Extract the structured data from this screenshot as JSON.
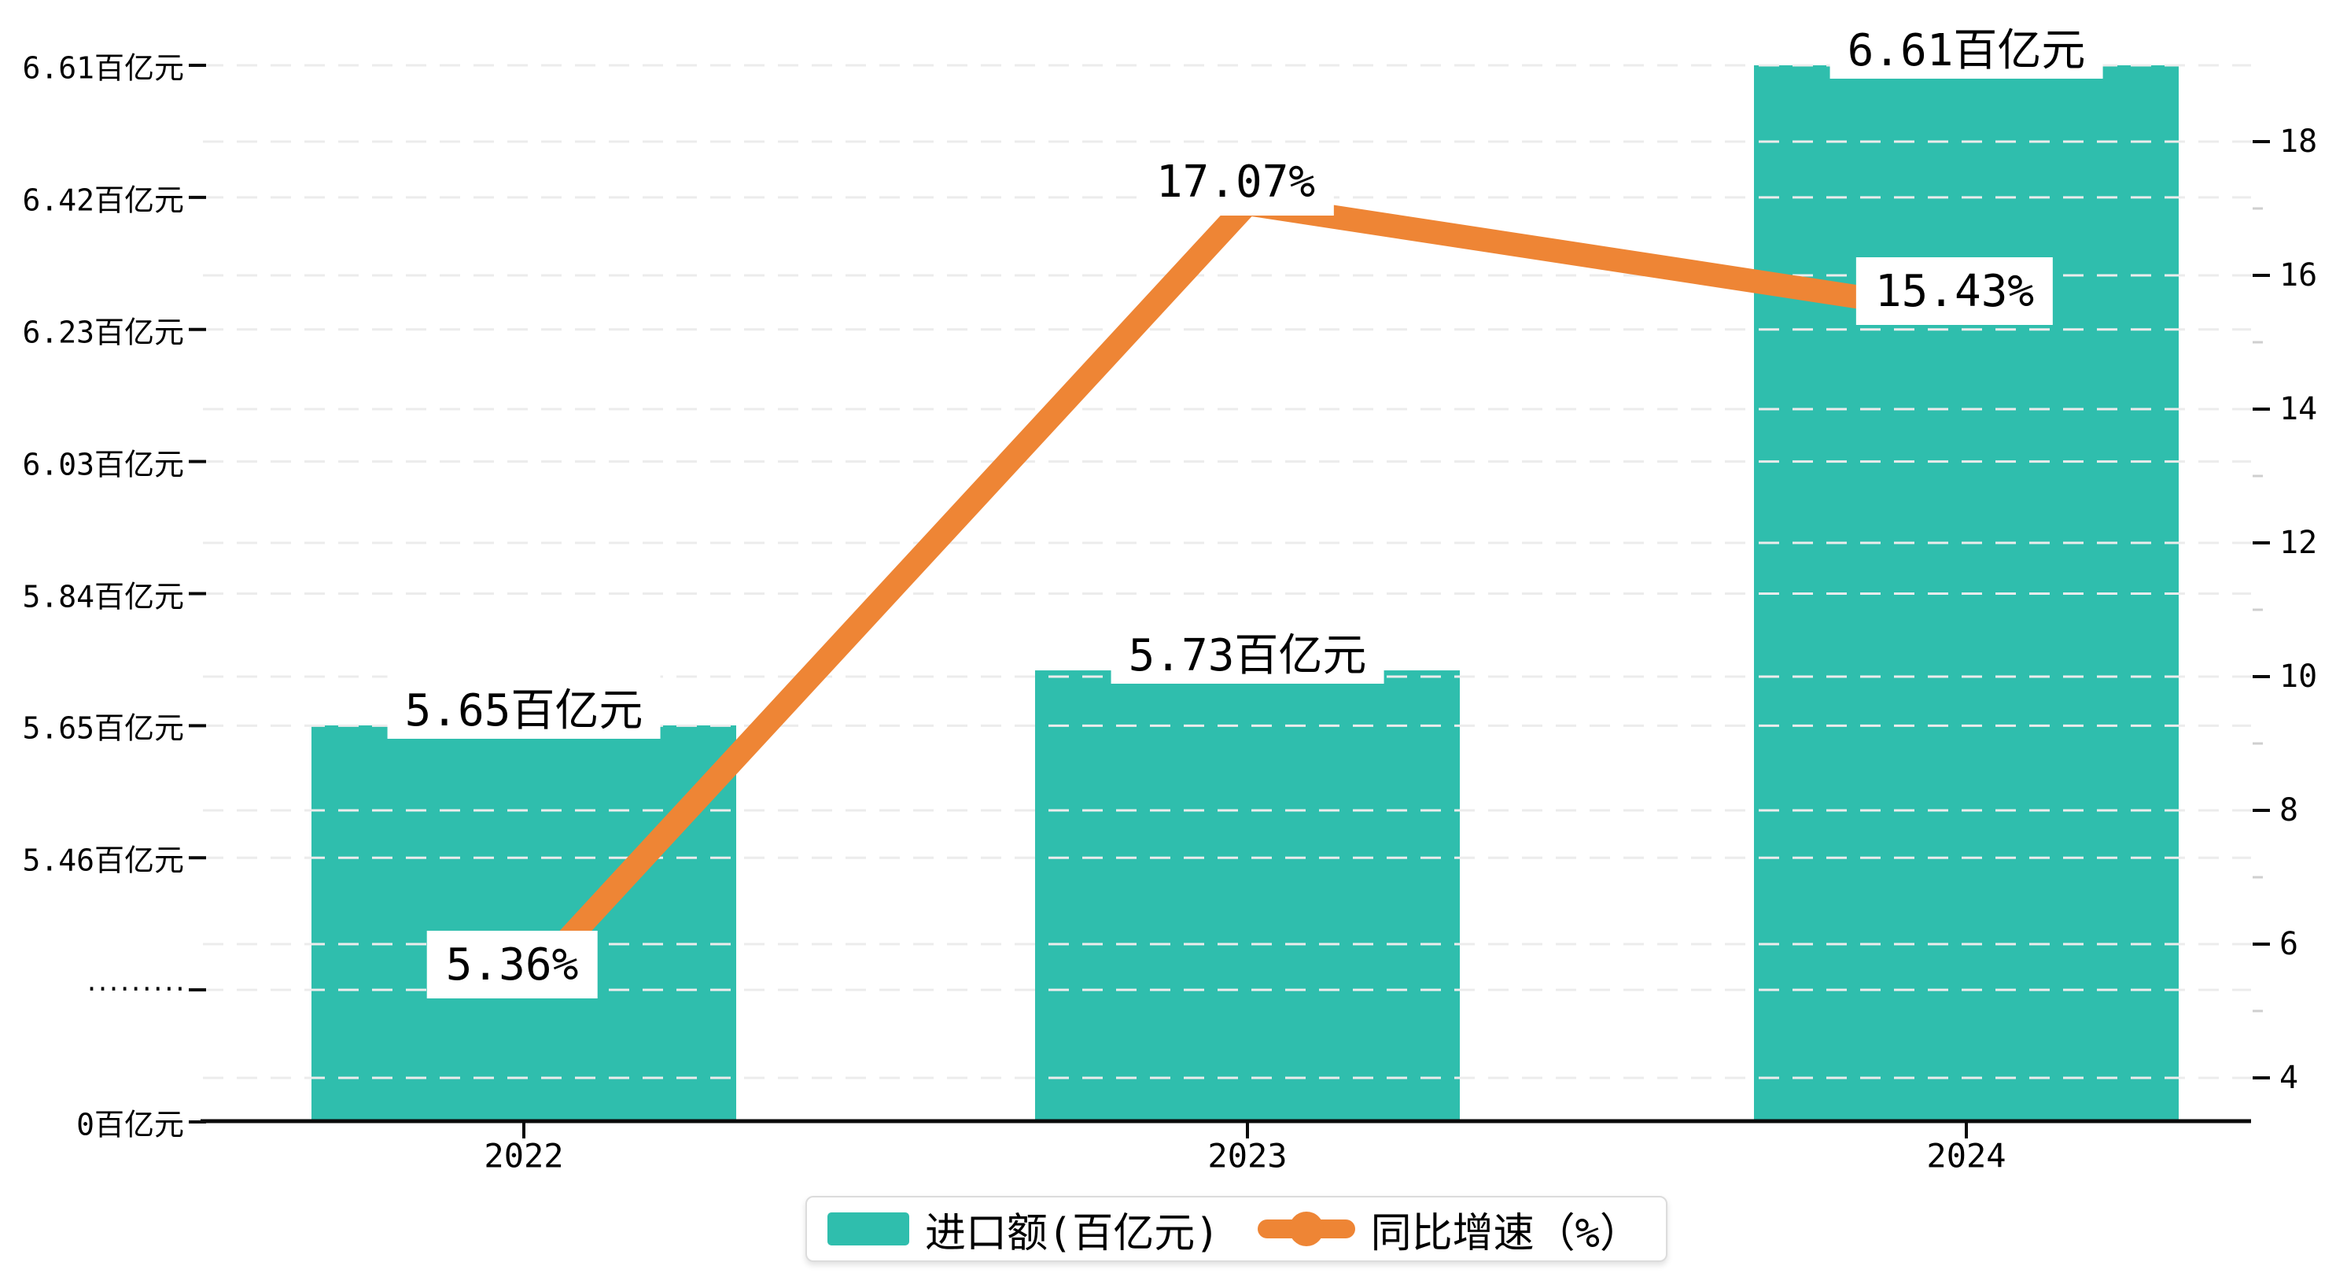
{
  "chart_data": {
    "type": "combo-bar-line",
    "categories": [
      "2022",
      "2023",
      "2024"
    ],
    "series": [
      {
        "name": "进口额(百亿元)",
        "type": "bar",
        "axis": "left",
        "unit": "百亿元",
        "values": [
          5.65,
          5.73,
          6.61
        ],
        "labels": [
          "5.65百亿元",
          "5.73百亿元",
          "6.61百亿元"
        ],
        "color": "#2fbead"
      },
      {
        "name": "同比增速（%）",
        "type": "line",
        "axis": "right",
        "unit": "%",
        "values": [
          5.36,
          17.07,
          15.43
        ],
        "labels": [
          "5.36%",
          "17.07%",
          "15.43%"
        ],
        "color": "#ee8535"
      }
    ],
    "left_axis": {
      "axis_break": true,
      "tick_labels": [
        "6.61百亿元",
        "6.42百亿元",
        "6.23百亿元",
        "6.03百亿元",
        "5.84百亿元",
        "5.65百亿元",
        "5.46百亿元",
        "·········",
        "0百亿元"
      ],
      "tick_values": [
        6.61,
        6.42,
        6.23,
        6.03,
        5.84,
        5.65,
        5.46,
        null,
        0
      ]
    },
    "right_axis": {
      "tick_labels": [
        "18",
        "16",
        "14",
        "12",
        "10",
        "8",
        "6",
        "4"
      ],
      "tick_values": [
        18,
        16,
        14,
        12,
        10,
        8,
        6,
        4
      ],
      "minor_tick_values": [
        17,
        15,
        13,
        11,
        9,
        7,
        5
      ],
      "range_approx": [
        3.35,
        19.1
      ]
    },
    "grid": "horizontal dashed lines at left-axis and right-axis ticks",
    "legend_position": "bottom-center",
    "title": ""
  },
  "legend": {
    "bar_label": "进口额(百亿元)",
    "line_label": "同比增速（%）"
  },
  "colors": {
    "bar": "#2fbead",
    "line": "#ee8535",
    "grid": "#ececec",
    "axis": "#0a0a0a",
    "minor_tick": "#cfcfcf",
    "label_bg": "#ffffff",
    "text": "#000000",
    "legend_border": "#dcdcdc"
  }
}
